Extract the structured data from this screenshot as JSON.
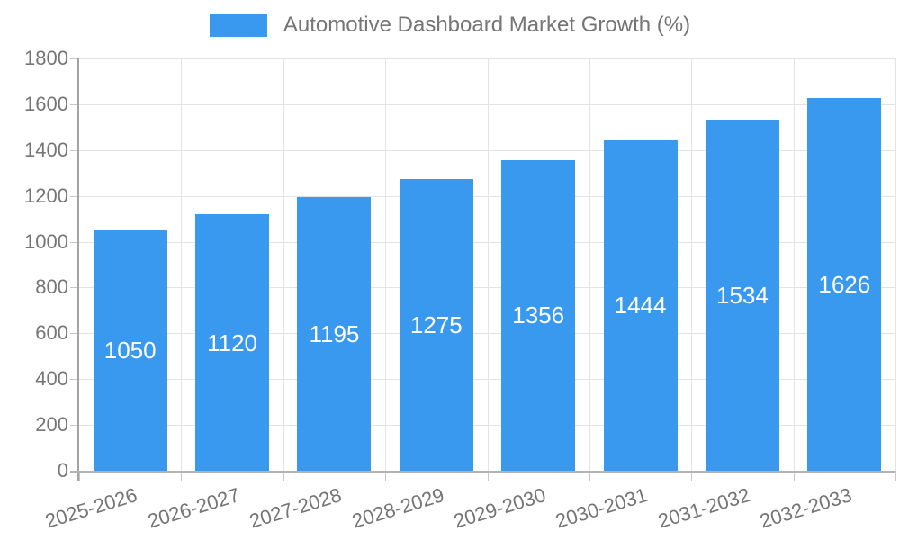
{
  "legend": {
    "label": "Automotive Dashboard Market Growth (%)"
  },
  "colors": {
    "bar": "#3899ef",
    "axis_text": "#757575",
    "value_text": "#ffffff",
    "gridline": "#e3e3e3",
    "axis_line": "#a3a3a3"
  },
  "chart_data": {
    "type": "bar",
    "title": "Automotive Dashboard Market Growth (%)",
    "categories": [
      "2025-2026",
      "2026-2027",
      "2027-2028",
      "2028-2029",
      "2029-2030",
      "2030-2031",
      "2031-2032",
      "2032-2033"
    ],
    "values": [
      1050,
      1120,
      1195,
      1275,
      1356,
      1444,
      1534,
      1626
    ],
    "bar_labels": [
      1050,
      1120,
      1195,
      1275,
      1356,
      1444,
      1534,
      1626
    ],
    "xlabel": "",
    "ylabel": "",
    "ylim": [
      0,
      1800
    ],
    "ytick_step": 200,
    "ytick_labels": [
      "0",
      "200",
      "400",
      "600",
      "800",
      "1000",
      "1200",
      "1400",
      "1600",
      "1800"
    ],
    "grid": true,
    "legend_position": "top",
    "bar_color": "#3899ef"
  }
}
